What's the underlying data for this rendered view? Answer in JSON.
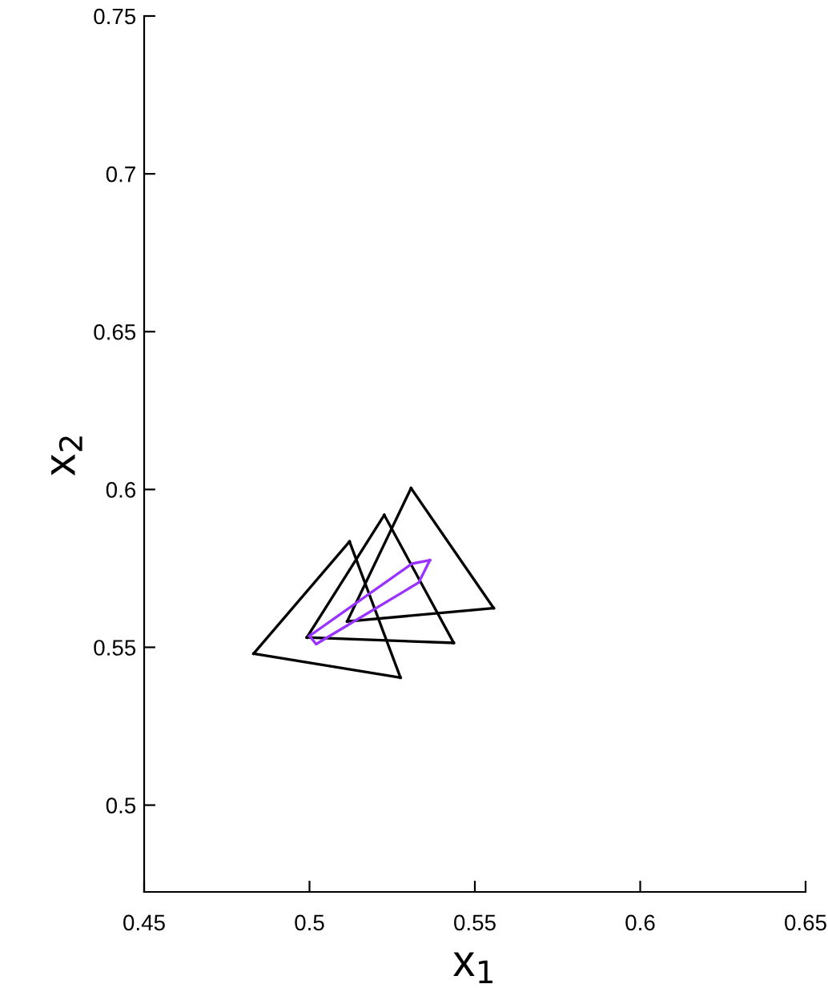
{
  "chart_data": {
    "type": "line",
    "xlabel": "x$_{1}$",
    "ylabel": "x$_{2}$",
    "xlim": [
      0.45,
      0.65
    ],
    "ylim": [
      0.4725,
      0.75
    ],
    "xticks": [
      0.45,
      0.5,
      0.55,
      0.6,
      0.65
    ],
    "yticks": [
      0.5,
      0.55,
      0.6,
      0.65,
      0.7,
      0.75
    ],
    "grid": false,
    "legend": false,
    "marker": "none",
    "line_style": "solid",
    "series": [
      {
        "color": "#000000",
        "x": [
          0.4831,
          0.5121
        ],
        "values": [
          0.548,
          0.5835
        ]
      },
      {
        "color": "#000000",
        "x": [
          0.5121,
          0.5275
        ],
        "values": [
          0.5835,
          0.5404
        ]
      },
      {
        "color": "#000000",
        "x": [
          0.4831,
          0.5275
        ],
        "values": [
          0.548,
          0.5404
        ]
      },
      {
        "color": "#000000",
        "x": [
          0.4992,
          0.5226
        ],
        "values": [
          0.5531,
          0.5919
        ]
      },
      {
        "color": "#000000",
        "x": [
          0.5226,
          0.5436
        ],
        "values": [
          0.5919,
          0.5514
        ]
      },
      {
        "color": "#000000",
        "x": [
          0.4992,
          0.5436
        ],
        "values": [
          0.5531,
          0.5514
        ]
      },
      {
        "color": "#000000",
        "x": [
          0.5114,
          0.5307
        ],
        "values": [
          0.5582,
          0.6004
        ]
      },
      {
        "color": "#000000",
        "x": [
          0.5307,
          0.5557
        ],
        "values": [
          0.6004,
          0.5624
        ]
      },
      {
        "color": "#000000",
        "x": [
          0.5114,
          0.5557
        ],
        "values": [
          0.5582,
          0.5624
        ]
      },
      {
        "color": "#9933ff",
        "x": [
          0.5,
          0.531,
          0.5364
        ],
        "values": [
          0.5536,
          0.5765,
          0.5776
        ]
      },
      {
        "color": "#9933ff",
        "x": [
          0.5,
          0.502,
          0.533,
          0.5364
        ],
        "values": [
          0.5536,
          0.551,
          0.5705,
          0.5776
        ]
      }
    ]
  }
}
